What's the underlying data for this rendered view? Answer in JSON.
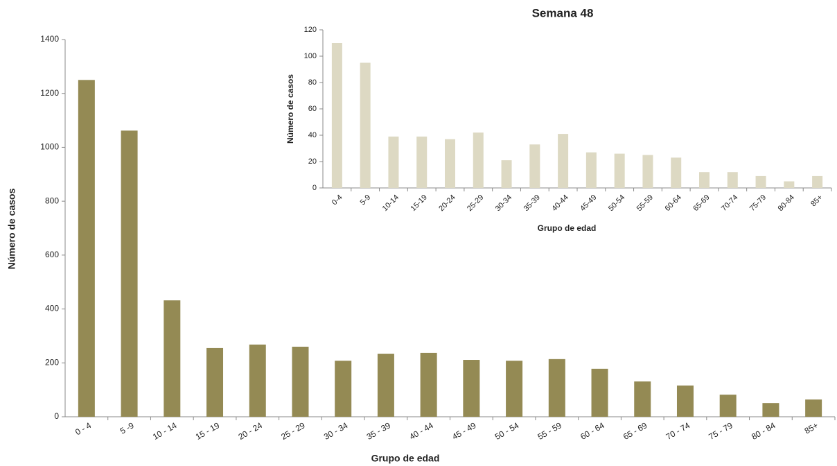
{
  "chart_data": [
    {
      "type": "bar",
      "x_label": "Grupo de edad",
      "y_label": "Número de casos",
      "categories": [
        "0 - 4",
        "5 -9",
        "10 - 14",
        "15 - 19",
        "20 - 24",
        "25 - 29",
        "30 - 34",
        "35 - 39",
        "40 - 44",
        "45 - 49",
        "50 - 54",
        "55 - 59",
        "60 - 64",
        "65 - 69",
        "70 - 74",
        "75 - 79",
        "80 - 84",
        "85+"
      ],
      "values": [
        1250,
        1062,
        432,
        255,
        268,
        260,
        208,
        234,
        237,
        211,
        208,
        214,
        178,
        131,
        116,
        82,
        51,
        64
      ],
      "color": "#948a54",
      "ylim": [
        0,
        1400
      ],
      "yticks": [
        0,
        200,
        400,
        600,
        800,
        1000,
        1200,
        1400
      ]
    },
    {
      "type": "bar",
      "title": "Semana 48",
      "x_label": "Grupo de edad",
      "y_label": "Número de casos",
      "categories": [
        "0-4",
        "5-9",
        "10-14",
        "15-19",
        "20-24",
        "25-29",
        "30-34",
        "35-39",
        "40-44",
        "45-49",
        "50-54",
        "55-59",
        "60-64",
        "65-69",
        "70-74",
        "75-79",
        "80-84",
        "85+"
      ],
      "values": [
        110,
        95,
        39,
        39,
        37,
        42,
        21,
        33,
        41,
        27,
        26,
        25,
        23,
        12,
        12,
        9,
        5,
        9
      ],
      "color": "#ddd9c3",
      "ylim": [
        0,
        120
      ],
      "yticks": [
        0,
        20,
        40,
        60,
        80,
        100,
        120
      ]
    }
  ]
}
